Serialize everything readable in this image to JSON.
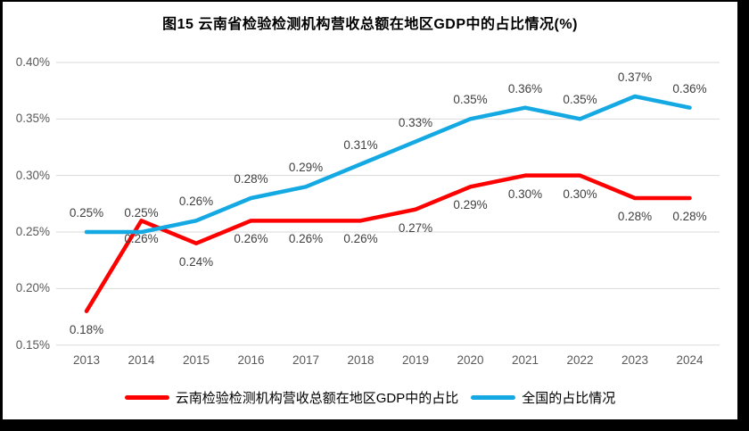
{
  "figure": {
    "title": "图15 云南省检验检测机构营收总额在地区GDP中的占比情况(%)"
  },
  "chart_data": {
    "type": "line",
    "title": "图15 云南省检验检测机构营收总额在地区GDP中的占比情况(%)",
    "categories": [
      "2013",
      "2014",
      "2015",
      "2016",
      "2017",
      "2018",
      "2019",
      "2020",
      "2021",
      "2022",
      "2023",
      "2024"
    ],
    "series": [
      {
        "name": "云南检验检测机构营收总额在地区GDP中的占比",
        "color": "#FE0000",
        "values": [
          0.18,
          0.26,
          0.24,
          0.26,
          0.26,
          0.26,
          0.27,
          0.29,
          0.3,
          0.3,
          0.28,
          0.28
        ],
        "point_labels": [
          "0.18%",
          "0.26%",
          "0.24%",
          "0.26%",
          "0.26%",
          "0.26%",
          "0.27%",
          "0.29%",
          "0.30%",
          "0.30%",
          "0.28%",
          "0.28%"
        ],
        "label_position": "below"
      },
      {
        "name": "全国的占比情况",
        "color": "#14A9E3",
        "values": [
          0.25,
          0.25,
          0.26,
          0.28,
          0.29,
          0.31,
          0.33,
          0.35,
          0.36,
          0.35,
          0.37,
          0.36
        ],
        "point_labels": [
          "0.25%",
          "0.25%",
          "0.26%",
          "0.28%",
          "0.29%",
          "0.31%",
          "0.33%",
          "0.35%",
          "0.36%",
          "0.35%",
          "0.37%",
          "0.36%"
        ],
        "label_position": "above"
      }
    ],
    "ylim": [
      0.15,
      0.4
    ],
    "ytick_values": [
      0.15,
      0.2,
      0.25,
      0.3,
      0.35,
      0.4
    ],
    "ytick_labels": [
      "0.15%",
      "0.20%",
      "0.25%",
      "0.30%",
      "0.35%",
      "0.40%"
    ],
    "unit": "%",
    "grid": true,
    "gridline_color": "#D9D9D9",
    "legend_position": "bottom"
  }
}
